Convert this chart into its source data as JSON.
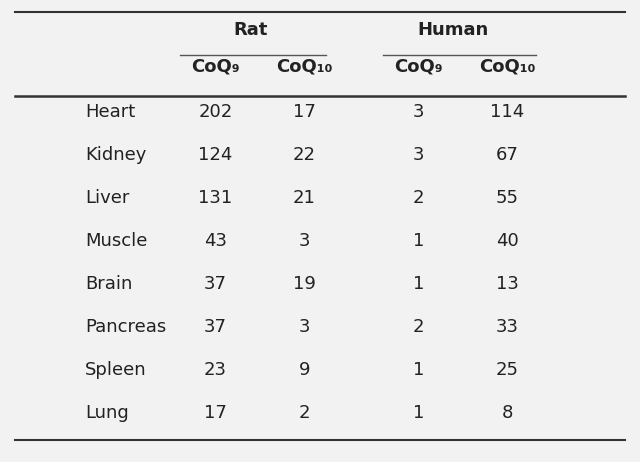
{
  "tissues": [
    "Heart",
    "Kidney",
    "Liver",
    "Muscle",
    "Brain",
    "Pancreas",
    "Spleen",
    "Lung"
  ],
  "rat_coq9": [
    202,
    124,
    131,
    43,
    37,
    37,
    23,
    17
  ],
  "rat_coq10": [
    17,
    22,
    21,
    3,
    19,
    3,
    9,
    2
  ],
  "human_coq9": [
    3,
    3,
    2,
    1,
    1,
    2,
    1,
    1
  ],
  "human_coq10": [
    114,
    67,
    55,
    40,
    13,
    33,
    25,
    8
  ],
  "col_headers_rat": [
    "CoQ₉",
    "CoQ₁₀"
  ],
  "col_headers_human": [
    "CoQ₉",
    "CoQ₁₀"
  ],
  "group_headers": [
    "Rat",
    "Human"
  ],
  "background_color": "#f2f2f2",
  "text_color": "#222222",
  "header_fontsize": 13,
  "cell_fontsize": 13,
  "tissue_fontsize": 13
}
